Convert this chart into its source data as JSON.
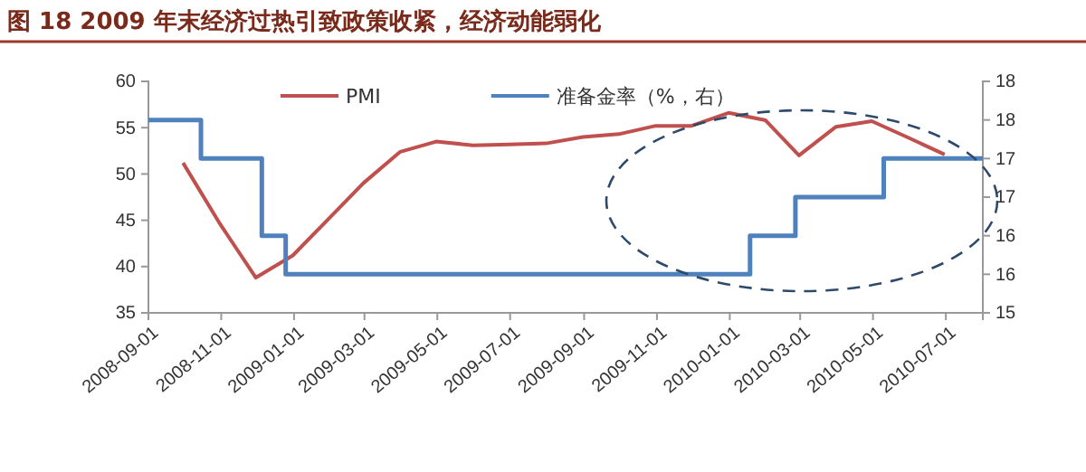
{
  "chart_data": {
    "type": "line",
    "title": "图 18 2009 年末经济过热引致政策收紧，经济动能弱化",
    "series": [
      {
        "name": "PMI",
        "color": "#c0504d",
        "x": [
          "2008-09-30",
          "2008-10-31",
          "2008-11-30",
          "2008-12-31",
          "2009-01-31",
          "2009-02-28",
          "2009-03-31",
          "2009-04-30",
          "2009-05-31",
          "2009-06-30",
          "2009-07-31",
          "2009-08-31",
          "2009-09-30",
          "2009-10-31",
          "2009-11-30",
          "2009-12-31",
          "2010-01-31",
          "2010-02-28",
          "2010-03-31",
          "2010-04-30",
          "2010-05-31",
          "2010-06-30"
        ],
        "values": [
          51.2,
          44.6,
          38.8,
          41.2,
          45.3,
          49.0,
          52.4,
          53.5,
          53.1,
          53.2,
          53.3,
          54.0,
          54.3,
          55.2,
          55.2,
          56.6,
          55.8,
          52.0,
          55.1,
          55.7,
          53.9,
          52.1
        ]
      },
      {
        "name": "准备金率（%，右）",
        "type": "step",
        "axis": "y2",
        "color": "#4f81bd",
        "x": [
          "2008-09-01",
          "2008-10-15",
          "2008-12-05",
          "2008-12-25",
          "2010-01-18",
          "2010-02-25",
          "2010-05-10",
          "2010-08-01"
        ],
        "values": [
          17.5,
          17,
          16,
          15.5,
          16,
          16.5,
          17,
          17
        ]
      }
    ],
    "xlim": [
      "2008-09-01",
      "2010-08-01"
    ],
    "xticks": [
      {
        "value": "2008-09-01",
        "label": "2008-09-01"
      },
      {
        "value": "2008-11-01",
        "label": "2008-11-01"
      },
      {
        "value": "2009-01-01",
        "label": "2009-01-01"
      },
      {
        "value": "2009-03-01",
        "label": "2009-03-01"
      },
      {
        "value": "2009-05-01",
        "label": "2009-05-01"
      },
      {
        "value": "2009-07-01",
        "label": "2009-07-01"
      },
      {
        "value": "2009-09-01",
        "label": "2009-09-01"
      },
      {
        "value": "2009-11-01",
        "label": "2009-11-01"
      },
      {
        "value": "2010-01-01",
        "label": "2010-01-01"
      },
      {
        "value": "2010-03-01",
        "label": "2010-03-01"
      },
      {
        "value": "2010-05-01",
        "label": "2010-05-01"
      },
      {
        "value": "2010-07-01",
        "label": "2010-07-01"
      }
    ],
    "ylim": [
      35,
      60
    ],
    "yticks": [
      35,
      40,
      45,
      50,
      55,
      60
    ],
    "y2lim": [
      15,
      18
    ],
    "y2ticks": [
      15,
      {
        "value": 15.5,
        "label": "16"
      },
      16,
      {
        "value": 16.5,
        "label": "17"
      },
      17,
      {
        "value": 17.5,
        "label": "18"
      },
      18
    ],
    "legend": "top",
    "grid": false
  }
}
